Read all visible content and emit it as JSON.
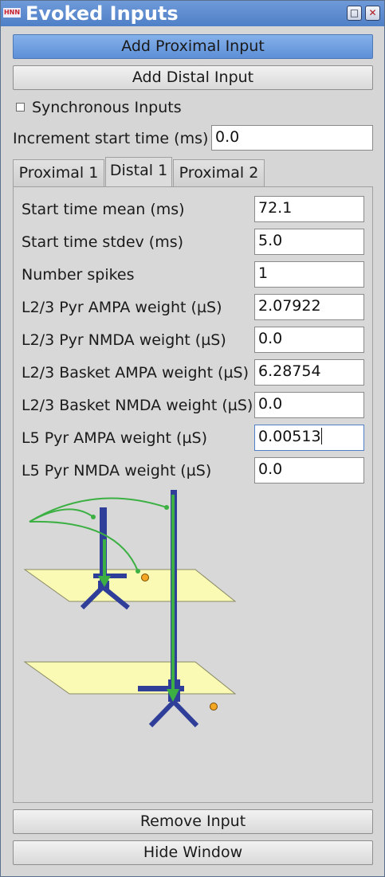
{
  "window": {
    "title": "Evoked Inputs",
    "app_icon": "HNN",
    "maximize_icon": "□",
    "close_icon": "✕"
  },
  "buttons": {
    "add_proximal": "Add Proximal Input",
    "add_distal": "Add Distal Input",
    "remove_input": "Remove Input",
    "hide_window": "Hide Window"
  },
  "sync_inputs": {
    "label": "Synchronous Inputs",
    "checked": false
  },
  "increment": {
    "label": "Increment start time (ms)",
    "value": "0.0"
  },
  "tabs": [
    {
      "label": "Proximal 1",
      "selected": false
    },
    {
      "label": "Distal 1",
      "selected": true
    },
    {
      "label": "Proximal 2",
      "selected": false
    }
  ],
  "params": [
    {
      "label": "Start time mean (ms)",
      "value": "72.1"
    },
    {
      "label": "Start time stdev (ms)",
      "value": "5.0"
    },
    {
      "label": "Number spikes",
      "value": "1"
    },
    {
      "label": "L2/3 Pyr AMPA weight (µS)",
      "value": "2.07922"
    },
    {
      "label": "L2/3 Pyr NMDA weight (µS)",
      "value": "0.0"
    },
    {
      "label": "L2/3 Basket AMPA weight (µS)",
      "value": "6.28754"
    },
    {
      "label": "L2/3 Basket NMDA weight (µS)",
      "value": "0.0"
    },
    {
      "label": "L5 Pyr AMPA weight (µS)",
      "value": "0.00513"
    },
    {
      "label": "L5 Pyr NMDA weight (µS)",
      "value": "0.0"
    }
  ],
  "colors": {
    "neuron": "#2f3e99",
    "arrow": "#3cb043",
    "plane": "#fafab4",
    "basket_cell": "#f5a623"
  }
}
